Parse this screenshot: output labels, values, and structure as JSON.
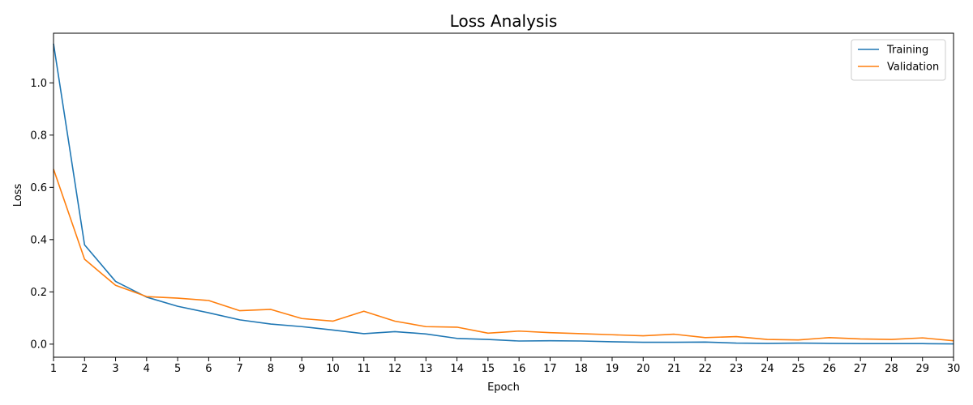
{
  "chart_data": {
    "type": "line",
    "title": "Loss Analysis",
    "xlabel": "Epoch",
    "ylabel": "Loss",
    "xlim": [
      1,
      30
    ],
    "ylim": [
      -0.05,
      1.19
    ],
    "x": [
      1,
      2,
      3,
      4,
      5,
      6,
      7,
      8,
      9,
      10,
      11,
      12,
      13,
      14,
      15,
      16,
      17,
      18,
      19,
      20,
      21,
      22,
      23,
      24,
      25,
      26,
      27,
      28,
      29,
      30
    ],
    "x_ticks": [
      "1",
      "2",
      "3",
      "4",
      "5",
      "6",
      "7",
      "8",
      "9",
      "10",
      "11",
      "12",
      "13",
      "14",
      "15",
      "16",
      "17",
      "18",
      "19",
      "20",
      "21",
      "22",
      "23",
      "24",
      "25",
      "26",
      "27",
      "28",
      "29",
      "30"
    ],
    "y_ticks": [
      {
        "value": 0.0,
        "label": "0.0"
      },
      {
        "value": 0.2,
        "label": "0.2"
      },
      {
        "value": 0.4,
        "label": "0.4"
      },
      {
        "value": 0.6,
        "label": "0.6"
      },
      {
        "value": 0.8,
        "label": "0.8"
      },
      {
        "value": 1.0,
        "label": "1.0"
      }
    ],
    "grid": false,
    "legend_position": "top-right",
    "series": [
      {
        "name": "Training",
        "color": "#1f77b4",
        "values": [
          1.15,
          0.38,
          0.24,
          0.18,
          0.145,
          0.12,
          0.093,
          0.077,
          0.067,
          0.054,
          0.04,
          0.048,
          0.039,
          0.022,
          0.018,
          0.012,
          0.013,
          0.012,
          0.009,
          0.007,
          0.007,
          0.008,
          0.004,
          0.003,
          0.004,
          0.003,
          0.002,
          0.002,
          0.002,
          0.001
        ]
      },
      {
        "name": "Validation",
        "color": "#ff7f0e",
        "values": [
          0.67,
          0.325,
          0.225,
          0.182,
          0.176,
          0.167,
          0.128,
          0.133,
          0.098,
          0.088,
          0.126,
          0.088,
          0.067,
          0.065,
          0.042,
          0.05,
          0.044,
          0.04,
          0.036,
          0.032,
          0.038,
          0.025,
          0.029,
          0.018,
          0.016,
          0.025,
          0.02,
          0.018,
          0.024,
          0.013
        ]
      }
    ]
  }
}
